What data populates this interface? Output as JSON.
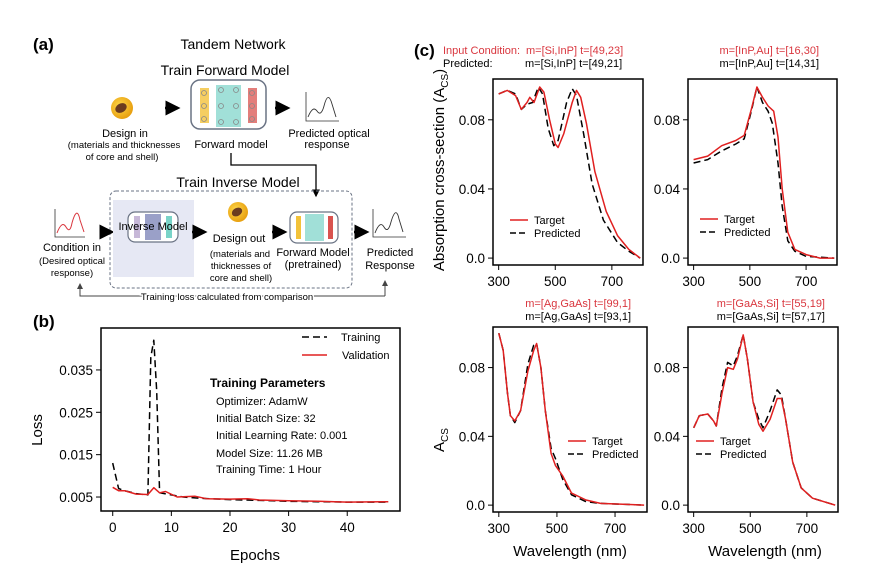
{
  "panel_a": {
    "label": "(a)",
    "title": "Tandem Network",
    "forward_section": "Train Forward Model",
    "design_in": [
      "Design in",
      "(materials and thicknesses",
      "of core and shell)"
    ],
    "forward_model": "Forward model",
    "predicted_optical": [
      "Predicted optical",
      "response"
    ],
    "inverse_section": "Train Inverse Model",
    "condition_in": [
      "Condition in",
      "(Desired optical",
      "response)"
    ],
    "inverse_model": "Inverse Model",
    "design_out": [
      "Design out",
      "(materials and",
      "thicknesses of",
      "core and shell)"
    ],
    "forward_pretrained": [
      "Forward Model",
      "(pretrained)"
    ],
    "predicted_response": [
      "Predicted",
      "Response"
    ],
    "feedback": "Training loss calculated from comparison",
    "colors": {
      "input_layer": "#f2c23a",
      "hidden_layers": "#79d3c8",
      "output_layer": "#d9534f",
      "inverse_hidden": "#9aa0c8",
      "nanoparticle": "#f5b820"
    }
  },
  "panel_b": {
    "label": "(b)",
    "params_title": "Training Parameters",
    "params": [
      "Optimizer: AdamW",
      "Initial Batch Size: 32",
      "Initial Learning Rate: 0.001",
      "Model Size: 11.26 MB",
      "Training Time: 1 Hour"
    ]
  },
  "panel_c": {
    "label": "(c)",
    "ylabel_top": "Absorption cross-section (A",
    "ylabel_top_sub": "CS",
    "ylabel_top_end": ")",
    "ylabel_bottom": "A",
    "ylabel_bottom_sub": "CS",
    "input_prefix": "Input Condition:",
    "predicted_prefix": "Predicted:"
  },
  "chart_data": [
    {
      "id": "loss",
      "type": "line",
      "xlabel": "Epochs",
      "ylabel": "Loss",
      "xlim": [
        -2,
        49
      ],
      "ylim": [
        0.0017,
        0.0449
      ],
      "xticks": [
        0,
        10,
        20,
        30,
        40
      ],
      "yticks": [
        0.005,
        0.015,
        0.025,
        0.035
      ],
      "ytick_labels": [
        "0.005",
        "0.015",
        "0.025",
        "0.035"
      ],
      "legend": "top-right",
      "series": [
        {
          "name": "Training",
          "style": "dashed",
          "color": "#000000",
          "x": [
            0,
            1,
            2,
            4,
            6,
            6.5,
            7,
            7.5,
            8,
            10,
            12,
            15,
            20,
            25,
            30,
            35,
            40,
            47
          ],
          "y": [
            0.013,
            0.007,
            0.0065,
            0.0058,
            0.0055,
            0.038,
            0.042,
            0.03,
            0.006,
            0.0055,
            0.005,
            0.0047,
            0.0044,
            0.0042,
            0.004,
            0.0039,
            0.0038,
            0.0038
          ]
        },
        {
          "name": "Validation",
          "style": "solid",
          "color": "#e02020",
          "x": [
            0,
            1,
            2,
            4,
            6,
            7,
            8,
            9,
            11,
            14,
            16,
            20,
            23,
            25,
            30,
            35,
            40,
            47
          ],
          "y": [
            0.0073,
            0.0065,
            0.0065,
            0.0057,
            0.0056,
            0.0072,
            0.006,
            0.0063,
            0.005,
            0.0052,
            0.0046,
            0.0045,
            0.0046,
            0.0043,
            0.0041,
            0.004,
            0.0038,
            0.0039
          ]
        }
      ]
    },
    {
      "id": "spec1",
      "type": "line",
      "title_target": "m=[Si,InP] t=[49,23]",
      "title_predicted": "m=[Si,InP] t=[49,21]",
      "xlim": [
        280,
        810
      ],
      "ylim": [
        -0.004,
        0.1036
      ],
      "xticks": [
        300,
        500,
        700
      ],
      "yticks": [
        0.0,
        0.04,
        0.08
      ],
      "ytick_labels": [
        "0.0",
        "0.04",
        "0.08"
      ],
      "legend": "bottom-left",
      "series": [
        {
          "name": "Target",
          "style": "solid",
          "color": "#e02020",
          "x": [
            300,
            330,
            360,
            380,
            400,
            410,
            425,
            445,
            460,
            480,
            500,
            510,
            530,
            560,
            575,
            590,
            610,
            640,
            680,
            720,
            760,
            800
          ],
          "y": [
            0.095,
            0.097,
            0.094,
            0.086,
            0.09,
            0.093,
            0.09,
            0.099,
            0.096,
            0.08,
            0.066,
            0.064,
            0.072,
            0.09,
            0.097,
            0.093,
            0.078,
            0.05,
            0.027,
            0.013,
            0.005,
            0.0
          ]
        },
        {
          "name": "Predicted",
          "style": "dashed",
          "color": "#000000",
          "x": [
            300,
            330,
            360,
            380,
            400,
            420,
            440,
            455,
            475,
            495,
            510,
            540,
            560,
            575,
            600,
            630,
            670,
            720,
            760,
            800
          ],
          "y": [
            0.095,
            0.097,
            0.095,
            0.086,
            0.089,
            0.09,
            0.099,
            0.095,
            0.075,
            0.065,
            0.068,
            0.09,
            0.098,
            0.094,
            0.072,
            0.043,
            0.022,
            0.009,
            0.004,
            0.0
          ]
        }
      ]
    },
    {
      "id": "spec2",
      "type": "line",
      "title_target": "m=[InP,Au] t=[16,30]",
      "title_predicted": "m=[InP,Au] t=[14,31]",
      "xlim": [
        280,
        810
      ],
      "ylim": [
        -0.004,
        0.1036
      ],
      "xticks": [
        300,
        500,
        700
      ],
      "yticks": [
        0.0,
        0.04,
        0.08
      ],
      "ytick_labels": [
        "0.0",
        "0.04",
        "0.08"
      ],
      "legend": "bottom-left",
      "series": [
        {
          "name": "Target",
          "style": "solid",
          "color": "#e02020",
          "x": [
            300,
            350,
            400,
            450,
            480,
            505,
            525,
            545,
            565,
            585,
            600,
            615,
            635,
            660,
            700,
            750,
            800
          ],
          "y": [
            0.057,
            0.059,
            0.065,
            0.068,
            0.071,
            0.086,
            0.099,
            0.093,
            0.088,
            0.085,
            0.07,
            0.04,
            0.015,
            0.005,
            0.002,
            0.0,
            0.0
          ]
        },
        {
          "name": "Predicted",
          "style": "dashed",
          "color": "#000000",
          "x": [
            300,
            350,
            400,
            450,
            480,
            505,
            525,
            545,
            565,
            580,
            600,
            615,
            635,
            660,
            700,
            800
          ],
          "y": [
            0.055,
            0.057,
            0.062,
            0.066,
            0.069,
            0.085,
            0.099,
            0.09,
            0.085,
            0.078,
            0.055,
            0.03,
            0.01,
            0.004,
            0.001,
            0.0
          ]
        }
      ]
    },
    {
      "id": "spec3",
      "type": "line",
      "title_target": "m=[Ag,GaAs] t=[99,1]",
      "title_predicted": "m=[Ag,GaAs] t=[93,1]",
      "xlabel": "Wavelength (nm)",
      "xlim": [
        280,
        810
      ],
      "ylim": [
        -0.004,
        0.1036
      ],
      "xticks": [
        300,
        500,
        700
      ],
      "yticks": [
        0.0,
        0.04,
        0.08
      ],
      "ytick_labels": [
        "0.0",
        "0.04",
        "0.08"
      ],
      "legend": "right",
      "series": [
        {
          "name": "Target",
          "style": "solid",
          "color": "#e02020",
          "x": [
            300,
            315,
            330,
            340,
            355,
            375,
            400,
            420,
            430,
            445,
            460,
            480,
            495,
            520,
            550,
            600,
            650,
            800
          ],
          "y": [
            0.1,
            0.09,
            0.065,
            0.052,
            0.049,
            0.055,
            0.078,
            0.09,
            0.094,
            0.08,
            0.055,
            0.03,
            0.023,
            0.017,
            0.007,
            0.003,
            0.001,
            0.0
          ]
        },
        {
          "name": "Predicted",
          "style": "dashed",
          "color": "#000000",
          "x": [
            300,
            315,
            330,
            340,
            355,
            375,
            400,
            420,
            430,
            445,
            460,
            480,
            495,
            520,
            550,
            600,
            650,
            800
          ],
          "y": [
            0.1,
            0.09,
            0.065,
            0.052,
            0.048,
            0.055,
            0.082,
            0.093,
            0.094,
            0.08,
            0.055,
            0.033,
            0.027,
            0.015,
            0.006,
            0.002,
            0.001,
            0.0
          ]
        }
      ]
    },
    {
      "id": "spec4",
      "type": "line",
      "title_target": "m=[GaAs,Si] t=[55,19]",
      "title_predicted": "m=[GaAs,Si] t=[57,17]",
      "xlabel": "Wavelength (nm)",
      "xlim": [
        280,
        810
      ],
      "ylim": [
        -0.004,
        0.1036
      ],
      "xticks": [
        300,
        500,
        700
      ],
      "yticks": [
        0.0,
        0.04,
        0.08
      ],
      "ytick_labels": [
        "0.0",
        "0.04",
        "0.08"
      ],
      "legend": "left",
      "series": [
        {
          "name": "Target",
          "style": "solid",
          "color": "#e02020",
          "x": [
            300,
            320,
            350,
            370,
            380,
            400,
            420,
            440,
            455,
            475,
            490,
            510,
            530,
            545,
            570,
            595,
            610,
            625,
            650,
            680,
            720,
            800
          ],
          "y": [
            0.045,
            0.052,
            0.053,
            0.049,
            0.046,
            0.065,
            0.08,
            0.079,
            0.085,
            0.099,
            0.085,
            0.06,
            0.047,
            0.043,
            0.05,
            0.062,
            0.062,
            0.05,
            0.025,
            0.01,
            0.004,
            0.0
          ]
        },
        {
          "name": "Predicted",
          "style": "dashed",
          "color": "#000000",
          "x": [
            300,
            320,
            350,
            370,
            380,
            400,
            420,
            440,
            455,
            475,
            490,
            510,
            530,
            545,
            570,
            595,
            610,
            625,
            650,
            680,
            720,
            800
          ],
          "y": [
            0.045,
            0.052,
            0.053,
            0.049,
            0.046,
            0.068,
            0.083,
            0.081,
            0.087,
            0.099,
            0.085,
            0.06,
            0.05,
            0.045,
            0.055,
            0.067,
            0.064,
            0.05,
            0.025,
            0.01,
            0.004,
            0.0
          ]
        }
      ]
    }
  ]
}
